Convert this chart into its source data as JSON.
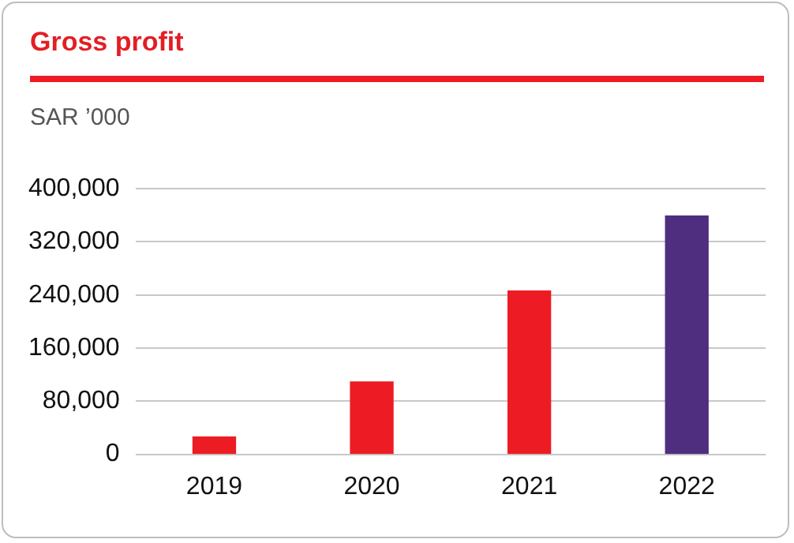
{
  "chart_data": {
    "type": "bar",
    "title": "Gross profit",
    "ylabel": "SAR ’000",
    "categories": [
      "2019",
      "2020",
      "2021",
      "2022"
    ],
    "values": [
      26000,
      109000,
      246000,
      359000
    ],
    "colors": [
      "#ed1c24",
      "#ed1c24",
      "#ed1c24",
      "#4f2d7f"
    ],
    "ylim": [
      0,
      400000
    ],
    "yticks": [
      0,
      {
        "value": 80000,
        "label": "80,000"
      },
      {
        "value": 160000,
        "label": "160,000"
      },
      {
        "value": 240000,
        "label": "240,000"
      },
      {
        "value": 320000,
        "label": "320,000"
      },
      {
        "value": 400000,
        "label": "400,000"
      }
    ],
    "grid": "y",
    "legend": false
  }
}
